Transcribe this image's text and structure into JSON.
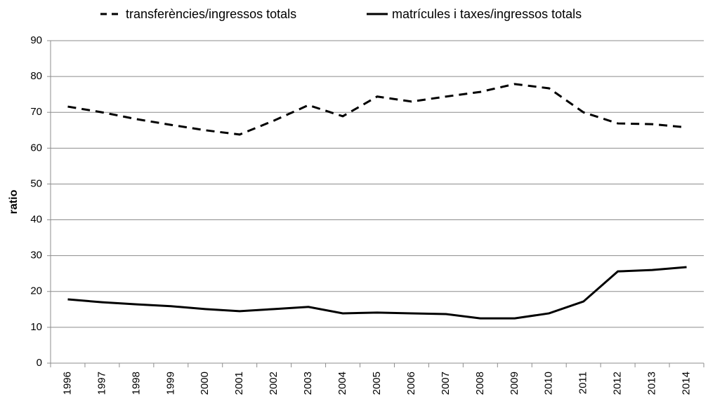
{
  "chart_data": {
    "type": "line",
    "y_label": "ratio",
    "categories": [
      "1996",
      "1997",
      "1998",
      "1999",
      "2000",
      "2001",
      "2002",
      "2003",
      "2004",
      "2005",
      "2006",
      "2007",
      "2008",
      "2009",
      "2010",
      "2011",
      "2012",
      "2013",
      "2014"
    ],
    "series": [
      {
        "name": "transferències/ingressos totals",
        "color": "#000000",
        "line_style": "dashed",
        "values": [
          71.6,
          70.0,
          68.1,
          66.5,
          65.0,
          63.8,
          67.7,
          72.0,
          68.9,
          74.4,
          73.0,
          74.4,
          75.7,
          77.9,
          76.7,
          70.0,
          66.9,
          66.7,
          65.8
        ]
      },
      {
        "name": "matrícules i taxes/ingressos totals",
        "color": "#000000",
        "line_style": "solid",
        "values": [
          17.8,
          17.0,
          16.4,
          15.9,
          15.1,
          14.5,
          15.1,
          15.7,
          13.9,
          14.1,
          13.9,
          13.7,
          12.5,
          12.5,
          13.9,
          17.2,
          25.6,
          26.0,
          26.8
        ]
      }
    ],
    "ylim": [
      0,
      90
    ],
    "yticks": [
      0,
      10,
      20,
      30,
      40,
      50,
      60,
      70,
      80,
      90
    ],
    "grid": true,
    "legend": "top"
  }
}
